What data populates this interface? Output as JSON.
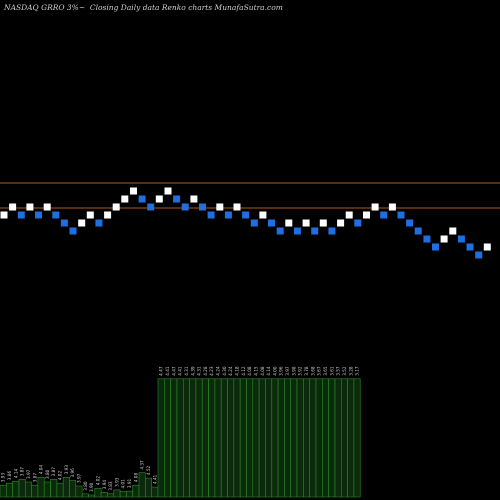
{
  "header": {
    "ticker": "NASDAQ GRRO",
    "change": "3%",
    "arrow": "~",
    "caption": "Closing Daily data  Renko  charts MunafaSutra.com"
  },
  "colors": {
    "background": "#000000",
    "up_brick": "#ffffff",
    "down_brick": "#1f6fe0",
    "level_line": "#b05a1e",
    "volume_fill": "#0b2a0b",
    "volume_stroke": "#2c8a2c",
    "label_text": "#d0d0d0"
  },
  "chart_data": {
    "type": "renko",
    "level_lines": [
      4.55,
      4.3
    ],
    "bricks": [
      {
        "y": 4.23,
        "dir": "up"
      },
      {
        "y": 4.31,
        "dir": "up"
      },
      {
        "y": 4.23,
        "dir": "down"
      },
      {
        "y": 4.31,
        "dir": "up"
      },
      {
        "y": 4.23,
        "dir": "down"
      },
      {
        "y": 4.31,
        "dir": "up"
      },
      {
        "y": 4.23,
        "dir": "down"
      },
      {
        "y": 4.15,
        "dir": "down"
      },
      {
        "y": 4.07,
        "dir": "down"
      },
      {
        "y": 4.15,
        "dir": "up"
      },
      {
        "y": 4.23,
        "dir": "up"
      },
      {
        "y": 4.15,
        "dir": "down"
      },
      {
        "y": 4.23,
        "dir": "up"
      },
      {
        "y": 4.31,
        "dir": "up"
      },
      {
        "y": 4.39,
        "dir": "up"
      },
      {
        "y": 4.47,
        "dir": "up"
      },
      {
        "y": 4.39,
        "dir": "down"
      },
      {
        "y": 4.31,
        "dir": "down"
      },
      {
        "y": 4.39,
        "dir": "up"
      },
      {
        "y": 4.47,
        "dir": "up"
      },
      {
        "y": 4.39,
        "dir": "down"
      },
      {
        "y": 4.31,
        "dir": "down"
      },
      {
        "y": 4.39,
        "dir": "up"
      },
      {
        "y": 4.31,
        "dir": "down"
      },
      {
        "y": 4.23,
        "dir": "down"
      },
      {
        "y": 4.31,
        "dir": "up"
      },
      {
        "y": 4.23,
        "dir": "down"
      },
      {
        "y": 4.31,
        "dir": "up"
      },
      {
        "y": 4.23,
        "dir": "down"
      },
      {
        "y": 4.15,
        "dir": "down"
      },
      {
        "y": 4.23,
        "dir": "up"
      },
      {
        "y": 4.15,
        "dir": "down"
      },
      {
        "y": 4.07,
        "dir": "down"
      },
      {
        "y": 4.15,
        "dir": "up"
      },
      {
        "y": 4.07,
        "dir": "down"
      },
      {
        "y": 4.15,
        "dir": "up"
      },
      {
        "y": 4.07,
        "dir": "down"
      },
      {
        "y": 4.15,
        "dir": "up"
      },
      {
        "y": 4.07,
        "dir": "down"
      },
      {
        "y": 4.15,
        "dir": "up"
      },
      {
        "y": 4.23,
        "dir": "up"
      },
      {
        "y": 4.15,
        "dir": "down"
      },
      {
        "y": 4.23,
        "dir": "up"
      },
      {
        "y": 4.31,
        "dir": "up"
      },
      {
        "y": 4.23,
        "dir": "down"
      },
      {
        "y": 4.31,
        "dir": "up"
      },
      {
        "y": 4.23,
        "dir": "down"
      },
      {
        "y": 4.15,
        "dir": "down"
      },
      {
        "y": 4.07,
        "dir": "down"
      },
      {
        "y": 3.99,
        "dir": "down"
      },
      {
        "y": 3.91,
        "dir": "down"
      },
      {
        "y": 3.99,
        "dir": "up"
      },
      {
        "y": 4.07,
        "dir": "up"
      },
      {
        "y": 3.99,
        "dir": "down"
      },
      {
        "y": 3.91,
        "dir": "down"
      },
      {
        "y": 3.83,
        "dir": "down"
      },
      {
        "y": 3.91,
        "dir": "up"
      }
    ],
    "volume": [
      {
        "v": 0.3,
        "label": "3.93"
      },
      {
        "v": 0.35,
        "label": "3.86"
      },
      {
        "v": 0.4,
        "label": "4.14"
      },
      {
        "v": 0.45,
        "label": "3.87"
      },
      {
        "v": 0.38,
        "label": "3.97"
      },
      {
        "v": 0.3,
        "label": "3.87"
      },
      {
        "v": 0.5,
        "label": "4.04"
      },
      {
        "v": 0.38,
        "label": "3.80"
      },
      {
        "v": 0.45,
        "label": "3.87"
      },
      {
        "v": 0.35,
        "label": "4.02"
      },
      {
        "v": 0.5,
        "label": "3.93"
      },
      {
        "v": 0.42,
        "label": "3.96"
      },
      {
        "v": 0.28,
        "label": "3.97"
      },
      {
        "v": 0.08,
        "label": "3.80"
      },
      {
        "v": 0.05,
        "label": "3.90"
      },
      {
        "v": 0.22,
        "label": "4.02"
      },
      {
        "v": 0.12,
        "label": "3.94"
      },
      {
        "v": 0.08,
        "label": "3.83"
      },
      {
        "v": 0.18,
        "label": "3.93"
      },
      {
        "v": 0.14,
        "label": "4.01"
      },
      {
        "v": 0.15,
        "label": "3.91"
      },
      {
        "v": 0.3,
        "label": "4.08"
      },
      {
        "v": 0.62,
        "label": "4.37"
      },
      {
        "v": 0.48,
        "label": "4.52"
      },
      {
        "v": 0.25,
        "label": "4.41"
      },
      {
        "v": 3.0,
        "label": "4.47"
      },
      {
        "v": 3.0,
        "label": "4.41"
      },
      {
        "v": 3.0,
        "label": "4.47"
      },
      {
        "v": 3.0,
        "label": "4.41"
      },
      {
        "v": 3.0,
        "label": "4.31"
      },
      {
        "v": 3.0,
        "label": "4.39"
      },
      {
        "v": 3.0,
        "label": "4.31"
      },
      {
        "v": 3.0,
        "label": "4.28"
      },
      {
        "v": 3.0,
        "label": "4.23"
      },
      {
        "v": 3.0,
        "label": "4.24"
      },
      {
        "v": 3.0,
        "label": "4.30"
      },
      {
        "v": 3.0,
        "label": "4.24"
      },
      {
        "v": 3.0,
        "label": "4.18"
      },
      {
        "v": 3.0,
        "label": "4.12"
      },
      {
        "v": 3.0,
        "label": "4.08"
      },
      {
        "v": 3.0,
        "label": "4.15"
      },
      {
        "v": 3.0,
        "label": "4.08"
      },
      {
        "v": 3.0,
        "label": "4.14"
      },
      {
        "v": 3.0,
        "label": "4.00"
      },
      {
        "v": 3.0,
        "label": "3.96"
      },
      {
        "v": 3.0,
        "label": "3.97"
      },
      {
        "v": 3.0,
        "label": "3.98"
      },
      {
        "v": 3.0,
        "label": "3.92"
      },
      {
        "v": 3.0,
        "label": "3.78"
      },
      {
        "v": 3.0,
        "label": "3.68"
      },
      {
        "v": 3.0,
        "label": "3.67"
      },
      {
        "v": 3.0,
        "label": "3.65"
      },
      {
        "v": 3.0,
        "label": "3.61"
      },
      {
        "v": 3.0,
        "label": "3.57"
      },
      {
        "v": 3.0,
        "label": "3.52"
      },
      {
        "v": 3.0,
        "label": "3.28"
      },
      {
        "v": 3.0,
        "label": "3.17"
      }
    ],
    "grid": false,
    "legend": "none"
  }
}
